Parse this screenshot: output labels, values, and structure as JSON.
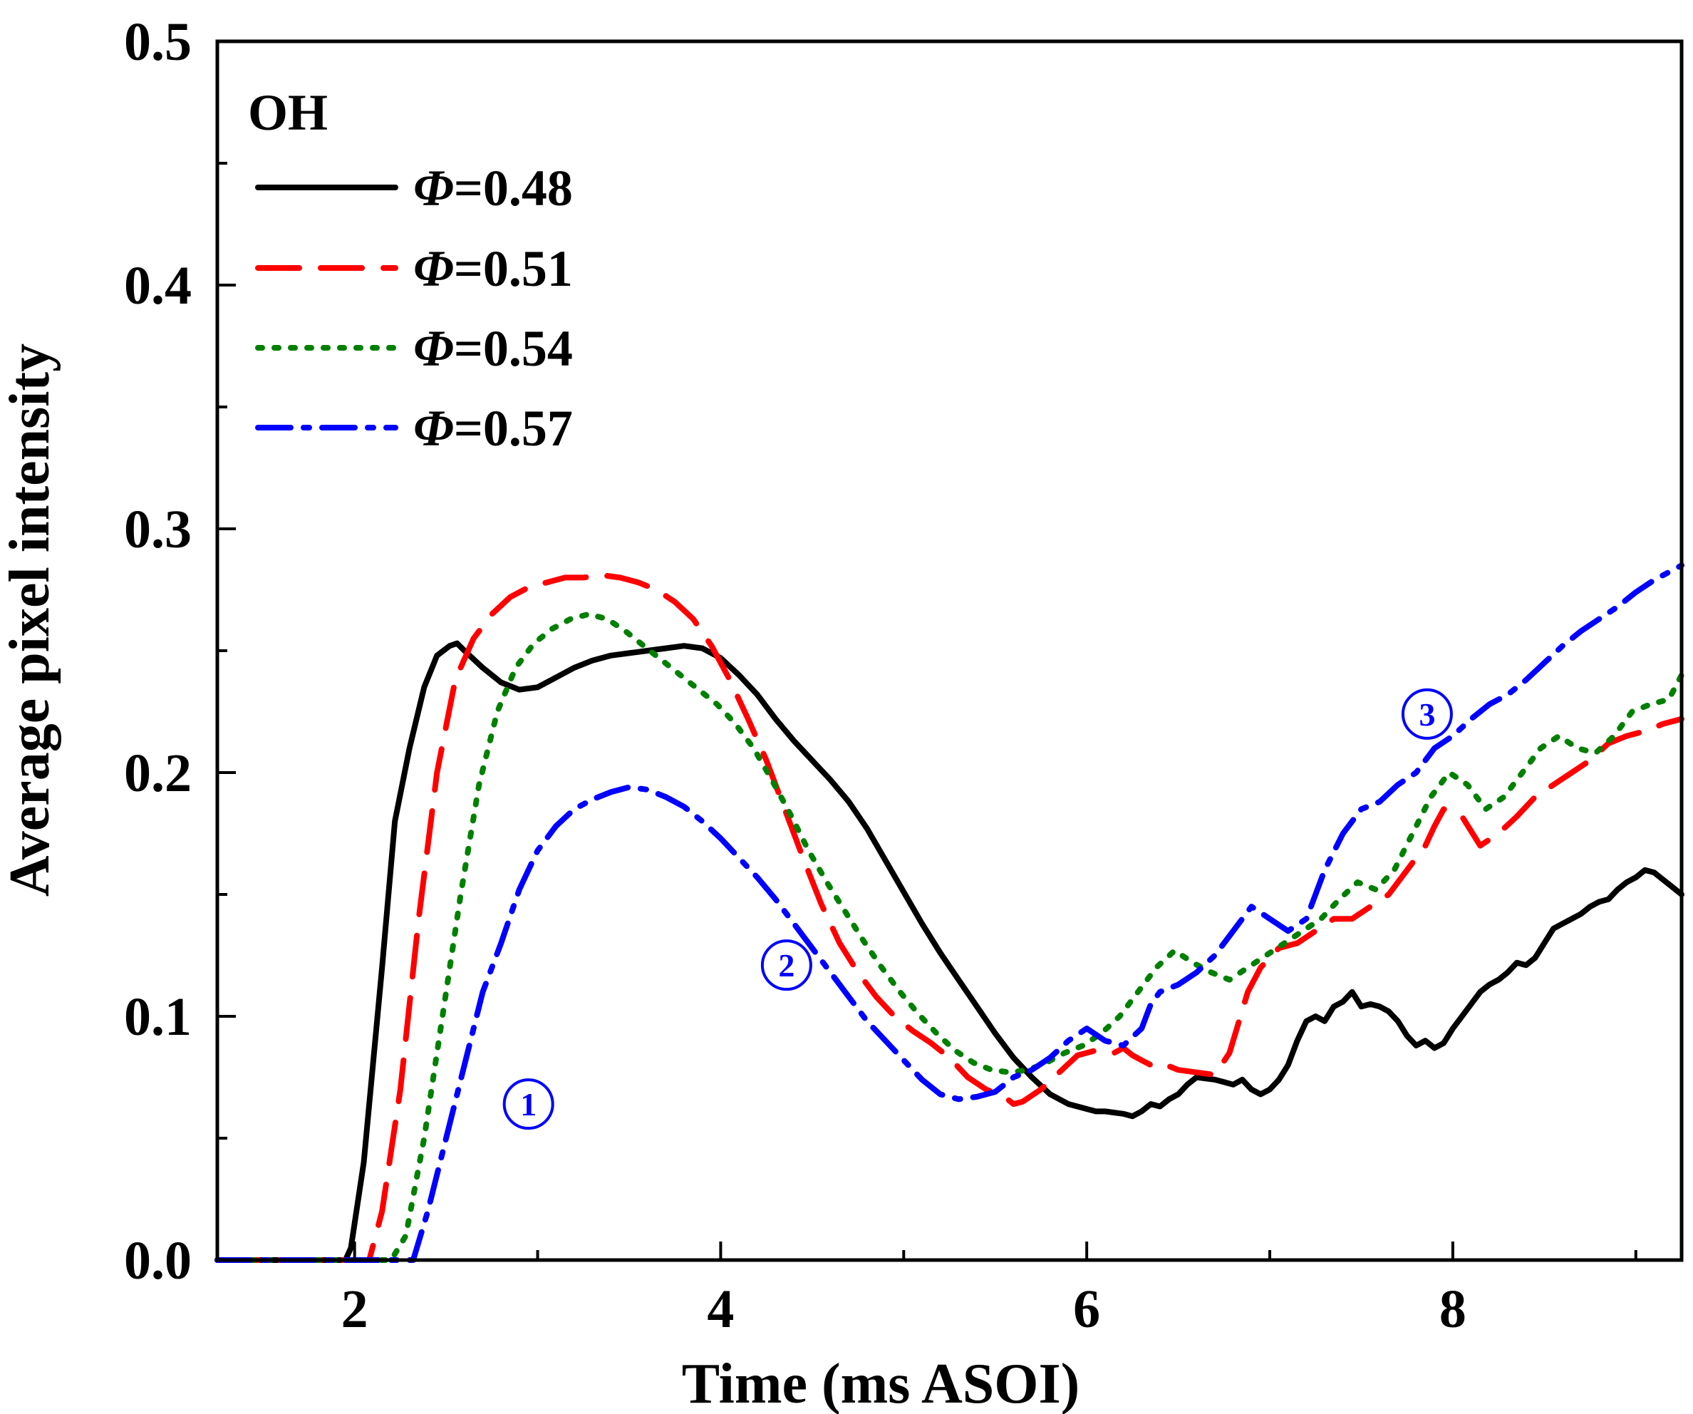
{
  "chart_data": {
    "type": "line",
    "title": "",
    "xlabel": "Time (ms ASOI)",
    "ylabel": "Average pixel intensity",
    "xlim": [
      1.25,
      9.25
    ],
    "ylim": [
      0.0,
      0.5
    ],
    "x_ticks": [
      2,
      4,
      6,
      8
    ],
    "x_tick_labels": [
      "2",
      "4",
      "6",
      "8"
    ],
    "x_minor_ticks": [
      3,
      5,
      7,
      9
    ],
    "y_ticks": [
      0.0,
      0.1,
      0.2,
      0.3,
      0.4,
      0.5
    ],
    "y_tick_labels": [
      "0.0",
      "0.1",
      "0.2",
      "0.3",
      "0.4",
      "0.5"
    ],
    "y_minor_ticks": [
      0.05,
      0.15,
      0.25,
      0.35,
      0.45
    ],
    "grid": false,
    "legend": {
      "title": "OH",
      "position": "top-left",
      "phi_symbol": "Φ"
    },
    "series": [
      {
        "name": "Φ=0.48",
        "symbol": "Φ",
        "value_text": "=0.48",
        "color": "#000000",
        "style": "solid",
        "x": [
          1.25,
          1.95,
          1.98,
          2.05,
          2.15,
          2.22,
          2.3,
          2.38,
          2.45,
          2.52,
          2.56,
          2.6,
          2.7,
          2.8,
          2.9,
          3.0,
          3.1,
          3.2,
          3.3,
          3.4,
          3.5,
          3.6,
          3.7,
          3.8,
          3.9,
          4.0,
          4.1,
          4.2,
          4.3,
          4.4,
          4.5,
          4.6,
          4.7,
          4.8,
          4.9,
          5.0,
          5.1,
          5.2,
          5.3,
          5.4,
          5.5,
          5.6,
          5.7,
          5.8,
          5.9,
          6.0,
          6.05,
          6.1,
          6.2,
          6.25,
          6.3,
          6.35,
          6.4,
          6.45,
          6.5,
          6.55,
          6.6,
          6.7,
          6.75,
          6.8,
          6.85,
          6.9,
          6.95,
          7.0,
          7.05,
          7.1,
          7.15,
          7.2,
          7.25,
          7.3,
          7.35,
          7.4,
          7.45,
          7.5,
          7.55,
          7.6,
          7.65,
          7.7,
          7.75,
          7.8,
          7.85,
          7.9,
          7.95,
          8.0,
          8.05,
          8.1,
          8.15,
          8.2,
          8.25,
          8.3,
          8.35,
          8.4,
          8.45,
          8.5,
          8.55,
          8.6,
          8.65,
          8.7,
          8.75,
          8.8,
          8.85,
          8.9,
          8.95,
          9.0,
          9.05,
          9.1,
          9.15,
          9.2,
          9.25
        ],
        "y": [
          0.0,
          0.0,
          0.005,
          0.04,
          0.12,
          0.18,
          0.21,
          0.235,
          0.248,
          0.252,
          0.253,
          0.25,
          0.243,
          0.237,
          0.234,
          0.235,
          0.239,
          0.243,
          0.246,
          0.248,
          0.249,
          0.25,
          0.251,
          0.252,
          0.251,
          0.247,
          0.24,
          0.232,
          0.222,
          0.213,
          0.205,
          0.197,
          0.188,
          0.177,
          0.164,
          0.151,
          0.138,
          0.126,
          0.115,
          0.104,
          0.093,
          0.083,
          0.075,
          0.068,
          0.064,
          0.062,
          0.061,
          0.061,
          0.06,
          0.059,
          0.061,
          0.064,
          0.063,
          0.066,
          0.068,
          0.072,
          0.075,
          0.074,
          0.073,
          0.072,
          0.074,
          0.07,
          0.068,
          0.07,
          0.074,
          0.08,
          0.09,
          0.098,
          0.1,
          0.098,
          0.104,
          0.106,
          0.11,
          0.104,
          0.105,
          0.104,
          0.102,
          0.098,
          0.092,
          0.088,
          0.09,
          0.087,
          0.089,
          0.095,
          0.1,
          0.105,
          0.11,
          0.113,
          0.115,
          0.118,
          0.122,
          0.121,
          0.124,
          0.13,
          0.136,
          0.138,
          0.14,
          0.142,
          0.145,
          0.147,
          0.148,
          0.152,
          0.155,
          0.157,
          0.16,
          0.159,
          0.156,
          0.153,
          0.15
        ]
      },
      {
        "name": "Φ=0.51",
        "symbol": "Φ",
        "value_text": "=0.51",
        "color": "#ff0000",
        "style": "dashed",
        "x": [
          1.25,
          2.08,
          2.15,
          2.25,
          2.35,
          2.45,
          2.55,
          2.65,
          2.75,
          2.85,
          2.95,
          3.05,
          3.15,
          3.25,
          3.35,
          3.45,
          3.55,
          3.65,
          3.75,
          3.85,
          3.95,
          4.05,
          4.15,
          4.25,
          4.35,
          4.45,
          4.55,
          4.65,
          4.75,
          4.85,
          4.95,
          5.05,
          5.15,
          5.25,
          5.35,
          5.45,
          5.55,
          5.6,
          5.65,
          5.75,
          5.85,
          5.95,
          6.05,
          6.15,
          6.2,
          6.25,
          6.3,
          6.35,
          6.4,
          6.5,
          6.6,
          6.7,
          6.78,
          6.82,
          6.88,
          6.95,
          7.05,
          7.15,
          7.25,
          7.35,
          7.45,
          7.55,
          7.65,
          7.75,
          7.85,
          7.9,
          7.95,
          8.05,
          8.15,
          8.25,
          8.35,
          8.45,
          8.55,
          8.65,
          8.75,
          8.85,
          8.95,
          9.05,
          9.15,
          9.25
        ],
        "y": [
          0.0,
          0.0,
          0.02,
          0.07,
          0.14,
          0.2,
          0.238,
          0.255,
          0.265,
          0.272,
          0.276,
          0.278,
          0.28,
          0.28,
          0.281,
          0.28,
          0.278,
          0.275,
          0.27,
          0.263,
          0.252,
          0.238,
          0.222,
          0.205,
          0.185,
          0.165,
          0.146,
          0.13,
          0.118,
          0.108,
          0.1,
          0.094,
          0.089,
          0.083,
          0.075,
          0.07,
          0.067,
          0.064,
          0.065,
          0.07,
          0.077,
          0.084,
          0.086,
          0.085,
          0.087,
          0.084,
          0.082,
          0.08,
          0.081,
          0.078,
          0.077,
          0.076,
          0.085,
          0.095,
          0.11,
          0.12,
          0.128,
          0.13,
          0.135,
          0.14,
          0.14,
          0.145,
          0.15,
          0.16,
          0.17,
          0.178,
          0.185,
          0.182,
          0.17,
          0.175,
          0.182,
          0.19,
          0.195,
          0.2,
          0.205,
          0.212,
          0.215,
          0.217,
          0.22,
          0.222
        ]
      },
      {
        "name": "Φ=0.54",
        "symbol": "Φ",
        "value_text": "=0.54",
        "color": "#008000",
        "style": "dotted",
        "x": [
          1.25,
          2.2,
          2.28,
          2.38,
          2.48,
          2.58,
          2.68,
          2.78,
          2.88,
          2.98,
          3.08,
          3.18,
          3.28,
          3.38,
          3.48,
          3.58,
          3.68,
          3.78,
          3.88,
          3.98,
          4.08,
          4.18,
          4.28,
          4.38,
          4.48,
          4.58,
          4.68,
          4.78,
          4.88,
          4.98,
          5.08,
          5.18,
          5.28,
          5.38,
          5.48,
          5.58,
          5.68,
          5.78,
          5.88,
          5.98,
          6.08,
          6.18,
          6.28,
          6.38,
          6.48,
          6.58,
          6.68,
          6.78,
          6.88,
          6.98,
          7.08,
          7.18,
          7.28,
          7.38,
          7.48,
          7.58,
          7.68,
          7.78,
          7.88,
          7.98,
          8.08,
          8.18,
          8.28,
          8.38,
          8.48,
          8.58,
          8.68,
          8.78,
          8.88,
          8.98,
          9.08,
          9.18,
          9.25
        ],
        "y": [
          0.0,
          0.0,
          0.01,
          0.05,
          0.1,
          0.15,
          0.195,
          0.225,
          0.243,
          0.253,
          0.259,
          0.263,
          0.265,
          0.263,
          0.258,
          0.252,
          0.246,
          0.24,
          0.234,
          0.228,
          0.22,
          0.21,
          0.197,
          0.183,
          0.168,
          0.155,
          0.143,
          0.131,
          0.12,
          0.11,
          0.101,
          0.093,
          0.086,
          0.081,
          0.078,
          0.077,
          0.078,
          0.081,
          0.085,
          0.088,
          0.093,
          0.1,
          0.11,
          0.12,
          0.127,
          0.122,
          0.118,
          0.115,
          0.12,
          0.125,
          0.13,
          0.135,
          0.14,
          0.148,
          0.155,
          0.152,
          0.16,
          0.175,
          0.19,
          0.2,
          0.195,
          0.185,
          0.19,
          0.2,
          0.21,
          0.215,
          0.21,
          0.208,
          0.215,
          0.225,
          0.228,
          0.23,
          0.24
        ]
      },
      {
        "name": "Φ=0.57",
        "symbol": "Φ",
        "value_text": "=0.57",
        "color": "#0000ff",
        "style": "dashdot",
        "x": [
          1.25,
          2.32,
          2.4,
          2.5,
          2.6,
          2.7,
          2.8,
          2.9,
          3.0,
          3.1,
          3.2,
          3.3,
          3.4,
          3.5,
          3.6,
          3.7,
          3.8,
          3.9,
          4.0,
          4.1,
          4.2,
          4.3,
          4.4,
          4.5,
          4.6,
          4.7,
          4.8,
          4.9,
          5.0,
          5.1,
          5.2,
          5.3,
          5.4,
          5.5,
          5.55,
          5.6,
          5.7,
          5.8,
          5.9,
          6.0,
          6.1,
          6.2,
          6.3,
          6.35,
          6.4,
          6.5,
          6.6,
          6.7,
          6.8,
          6.9,
          7.0,
          7.1,
          7.2,
          7.3,
          7.4,
          7.5,
          7.6,
          7.7,
          7.8,
          7.9,
          8.0,
          8.1,
          8.2,
          8.3,
          8.4,
          8.5,
          8.6,
          8.7,
          8.8,
          8.9,
          9.0,
          9.1,
          9.2,
          9.25
        ],
        "y": [
          0.0,
          0.0,
          0.02,
          0.05,
          0.08,
          0.11,
          0.13,
          0.152,
          0.168,
          0.178,
          0.185,
          0.189,
          0.192,
          0.194,
          0.193,
          0.19,
          0.186,
          0.18,
          0.173,
          0.165,
          0.157,
          0.148,
          0.138,
          0.128,
          0.118,
          0.108,
          0.098,
          0.09,
          0.082,
          0.074,
          0.068,
          0.066,
          0.067,
          0.069,
          0.072,
          0.075,
          0.078,
          0.083,
          0.09,
          0.095,
          0.09,
          0.088,
          0.095,
          0.105,
          0.11,
          0.113,
          0.118,
          0.125,
          0.135,
          0.145,
          0.14,
          0.135,
          0.14,
          0.16,
          0.175,
          0.185,
          0.188,
          0.195,
          0.2,
          0.21,
          0.215,
          0.222,
          0.228,
          0.232,
          0.238,
          0.245,
          0.252,
          0.258,
          0.263,
          0.268,
          0.274,
          0.279,
          0.283,
          0.285
        ]
      }
    ],
    "annotations": [
      {
        "id": "annotation-1",
        "text": "1",
        "x": 2.95,
        "y": 0.064,
        "color": "#0000ff"
      },
      {
        "id": "annotation-2",
        "text": "2",
        "x": 4.36,
        "y": 0.121,
        "color": "#0000ff"
      },
      {
        "id": "annotation-3",
        "text": "3",
        "x": 7.86,
        "y": 0.224,
        "color": "#0000ff"
      }
    ]
  }
}
